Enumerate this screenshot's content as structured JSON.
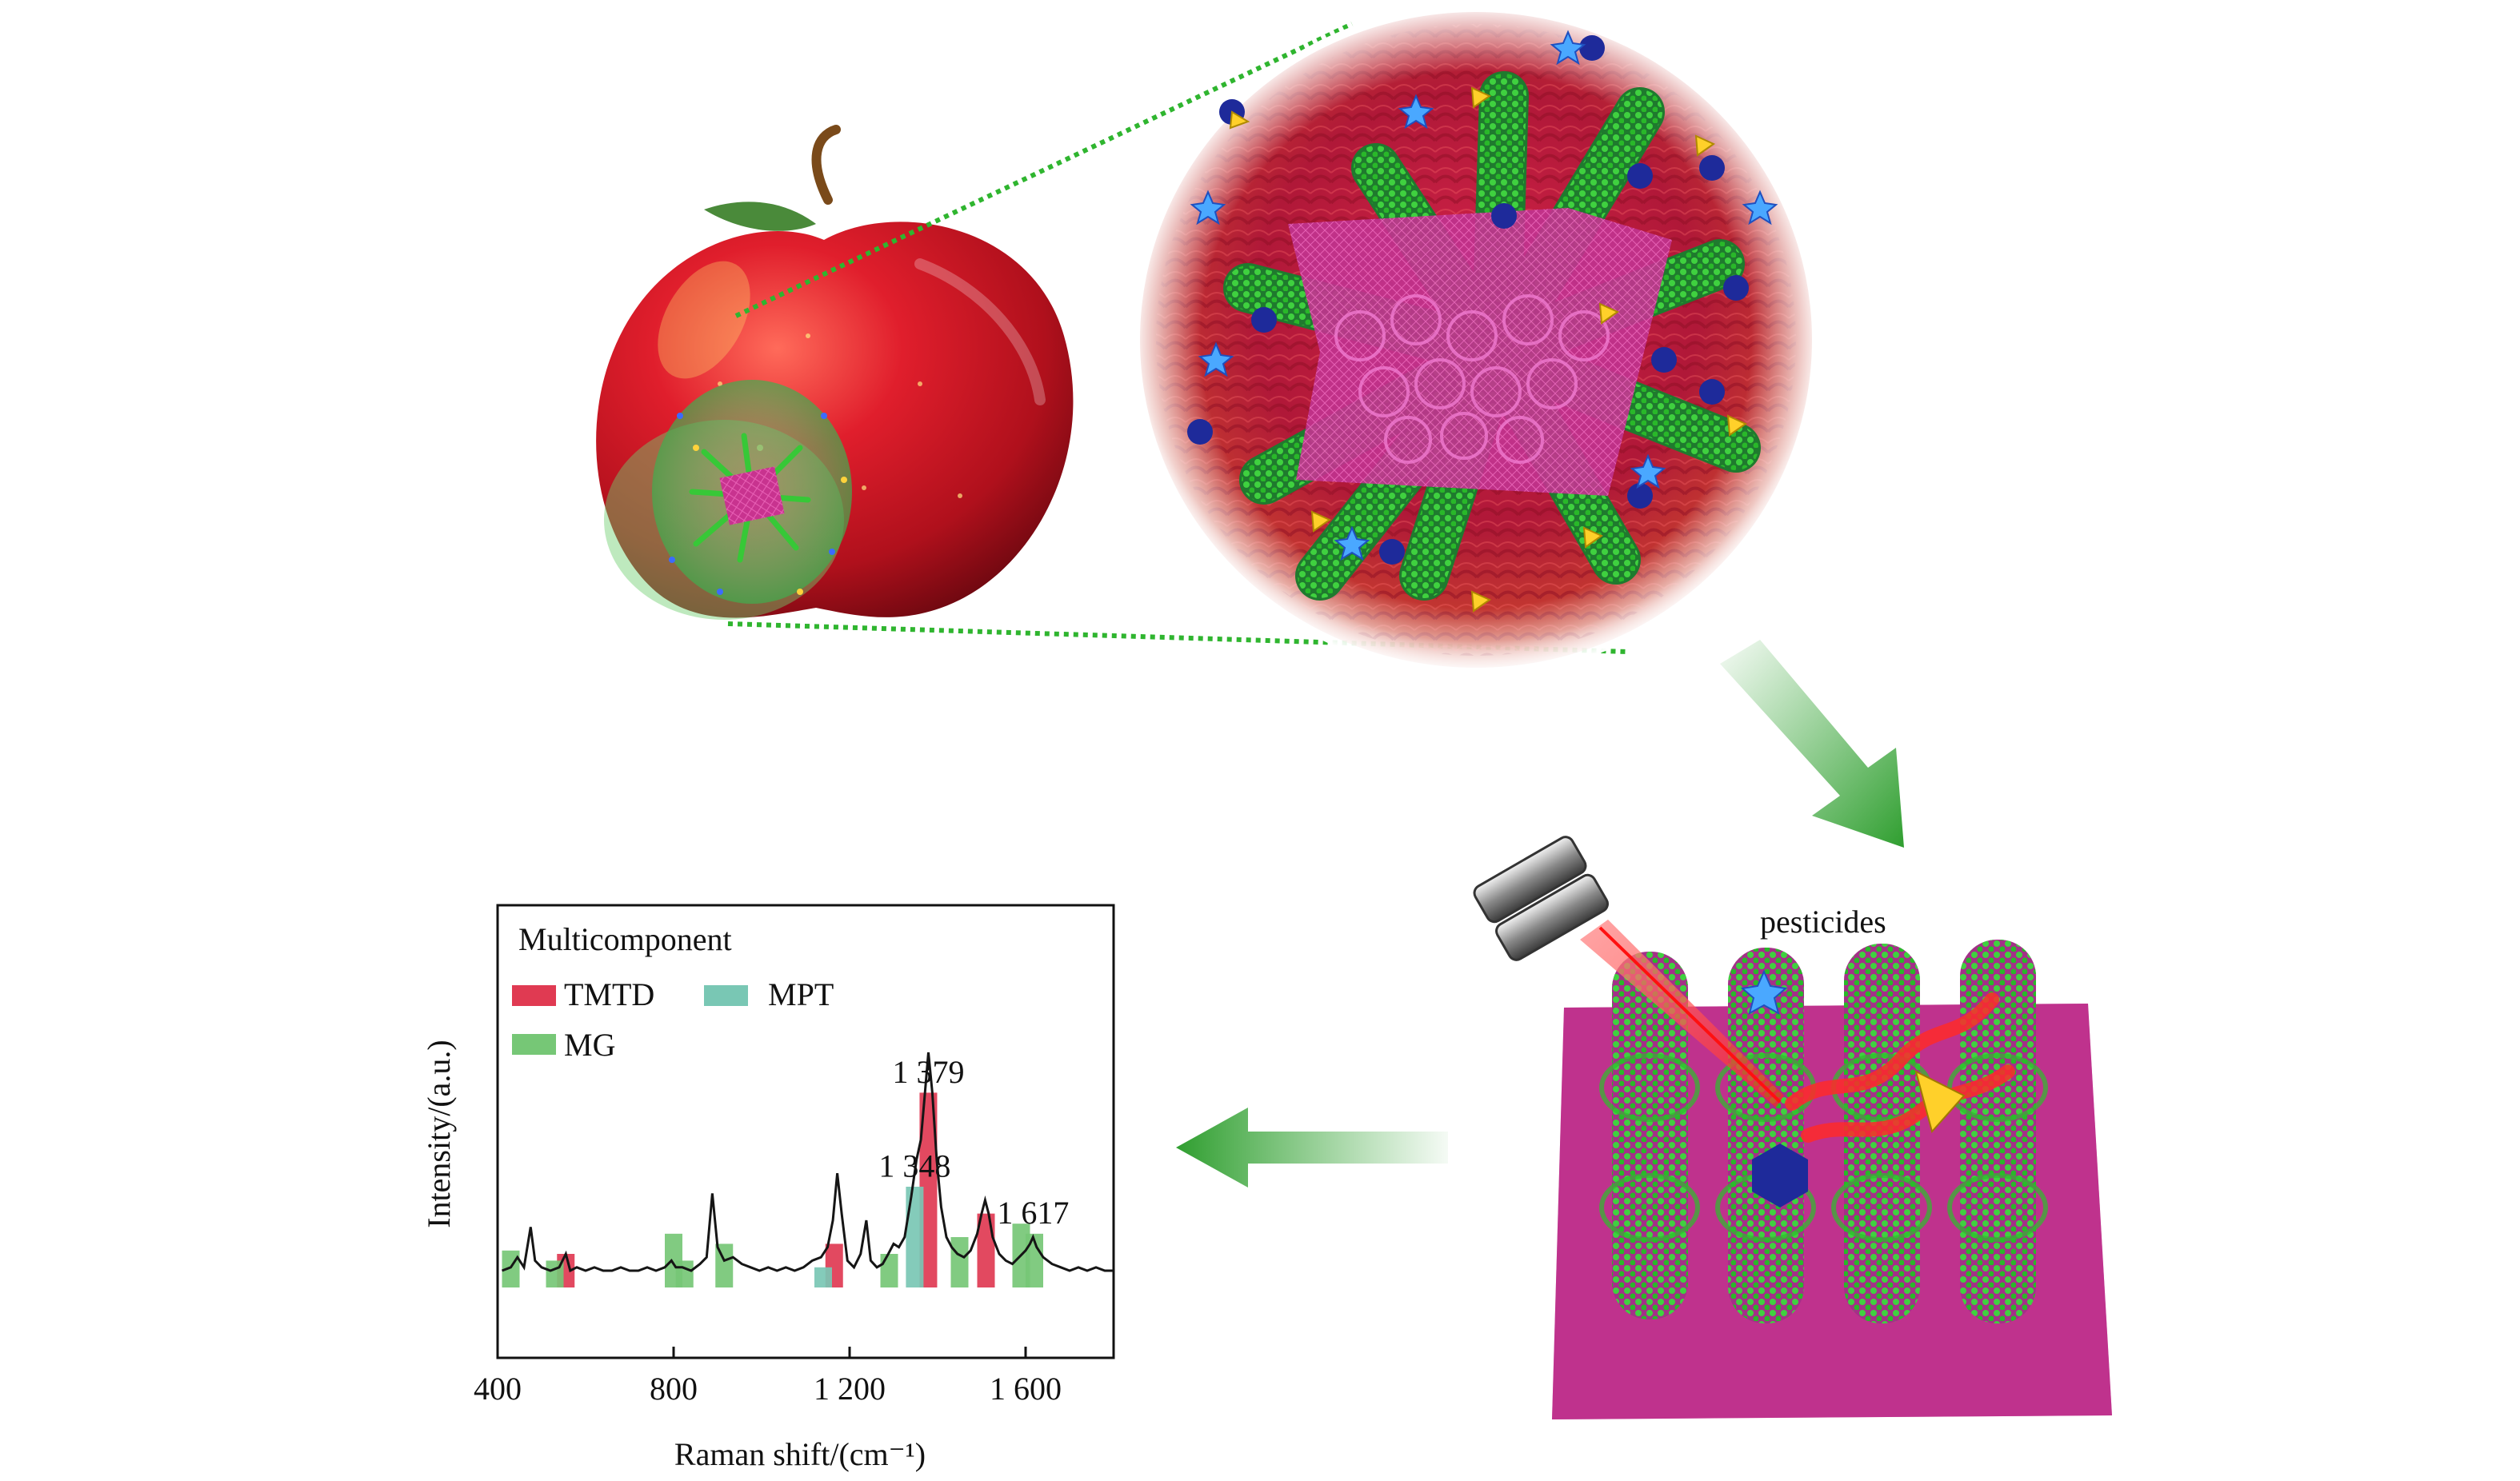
{
  "labels": {
    "pesticides": "pesticides"
  },
  "chart_data": {
    "type": "line",
    "title": "",
    "legend_title": "Multicomponent",
    "legend_placement": "top-left",
    "xlabel": "Raman shift/(cm⁻¹)",
    "ylabel": "Intensity/(a.u.)",
    "xlim": [
      400,
      1800
    ],
    "x_ticks": [
      {
        "value": 400,
        "label": "400"
      },
      {
        "value": 800,
        "label": "800"
      },
      {
        "value": 1200,
        "label": "1 200"
      },
      {
        "value": 1600,
        "label": "1 600"
      }
    ],
    "ylim": [
      0,
      100
    ],
    "grid": false,
    "spectrum": [
      [
        410,
        5
      ],
      [
        430,
        6
      ],
      [
        445,
        9
      ],
      [
        460,
        6
      ],
      [
        475,
        18
      ],
      [
        485,
        8
      ],
      [
        500,
        6
      ],
      [
        520,
        5
      ],
      [
        540,
        6
      ],
      [
        555,
        10
      ],
      [
        565,
        5
      ],
      [
        580,
        6
      ],
      [
        600,
        5
      ],
      [
        620,
        6
      ],
      [
        640,
        5
      ],
      [
        660,
        5
      ],
      [
        680,
        6
      ],
      [
        700,
        5
      ],
      [
        720,
        5
      ],
      [
        740,
        6
      ],
      [
        760,
        5
      ],
      [
        780,
        6
      ],
      [
        795,
        8
      ],
      [
        805,
        6
      ],
      [
        820,
        6
      ],
      [
        840,
        5
      ],
      [
        860,
        7
      ],
      [
        875,
        9
      ],
      [
        888,
        28
      ],
      [
        900,
        12
      ],
      [
        915,
        8
      ],
      [
        935,
        9
      ],
      [
        955,
        7
      ],
      [
        975,
        6
      ],
      [
        995,
        5
      ],
      [
        1015,
        6
      ],
      [
        1035,
        5
      ],
      [
        1055,
        6
      ],
      [
        1075,
        5
      ],
      [
        1095,
        6
      ],
      [
        1115,
        8
      ],
      [
        1135,
        9
      ],
      [
        1150,
        12
      ],
      [
        1162,
        20
      ],
      [
        1172,
        34
      ],
      [
        1182,
        22
      ],
      [
        1195,
        8
      ],
      [
        1210,
        6
      ],
      [
        1225,
        10
      ],
      [
        1238,
        20
      ],
      [
        1248,
        8
      ],
      [
        1262,
        6
      ],
      [
        1275,
        7
      ],
      [
        1288,
        10
      ],
      [
        1300,
        13
      ],
      [
        1312,
        12
      ],
      [
        1325,
        15
      ],
      [
        1340,
        27
      ],
      [
        1352,
        38
      ],
      [
        1362,
        44
      ],
      [
        1370,
        56
      ],
      [
        1379,
        70
      ],
      [
        1388,
        58
      ],
      [
        1398,
        38
      ],
      [
        1408,
        24
      ],
      [
        1420,
        15
      ],
      [
        1432,
        12
      ],
      [
        1445,
        10
      ],
      [
        1460,
        9
      ],
      [
        1475,
        11
      ],
      [
        1490,
        16
      ],
      [
        1500,
        22
      ],
      [
        1508,
        26
      ],
      [
        1516,
        22
      ],
      [
        1525,
        15
      ],
      [
        1540,
        10
      ],
      [
        1555,
        8
      ],
      [
        1570,
        7
      ],
      [
        1585,
        9
      ],
      [
        1600,
        11
      ],
      [
        1610,
        13
      ],
      [
        1617,
        15
      ],
      [
        1625,
        12
      ],
      [
        1640,
        9
      ],
      [
        1660,
        7
      ],
      [
        1680,
        6
      ],
      [
        1700,
        5
      ],
      [
        1720,
        6
      ],
      [
        1740,
        5
      ],
      [
        1760,
        6
      ],
      [
        1780,
        5
      ],
      [
        1800,
        5
      ]
    ],
    "series": [
      {
        "name": "TMTD",
        "color": "#e03a52",
        "bands": [
          {
            "x": 555,
            "height": 10
          },
          {
            "x": 1165,
            "height": 13
          },
          {
            "x": 1379,
            "height": 58
          },
          {
            "x": 1510,
            "height": 22
          }
        ]
      },
      {
        "name": "MPT",
        "color": "#79c7b4",
        "bands": [
          {
            "x": 1140,
            "height": 6
          },
          {
            "x": 1348,
            "height": 30
          }
        ]
      },
      {
        "name": "MG",
        "color": "#76c776",
        "bands": [
          {
            "x": 430,
            "height": 11
          },
          {
            "x": 530,
            "height": 8
          },
          {
            "x": 800,
            "height": 16
          },
          {
            "x": 825,
            "height": 8
          },
          {
            "x": 915,
            "height": 13
          },
          {
            "x": 1290,
            "height": 10
          },
          {
            "x": 1450,
            "height": 15
          },
          {
            "x": 1590,
            "height": 19
          },
          {
            "x": 1620,
            "height": 16
          }
        ]
      }
    ],
    "annotations": [
      {
        "x": 1348,
        "y": 33,
        "text": "1 348"
      },
      {
        "x": 1379,
        "y": 61,
        "text": "1 379"
      },
      {
        "x": 1617,
        "y": 19,
        "text": "1 617"
      }
    ]
  }
}
